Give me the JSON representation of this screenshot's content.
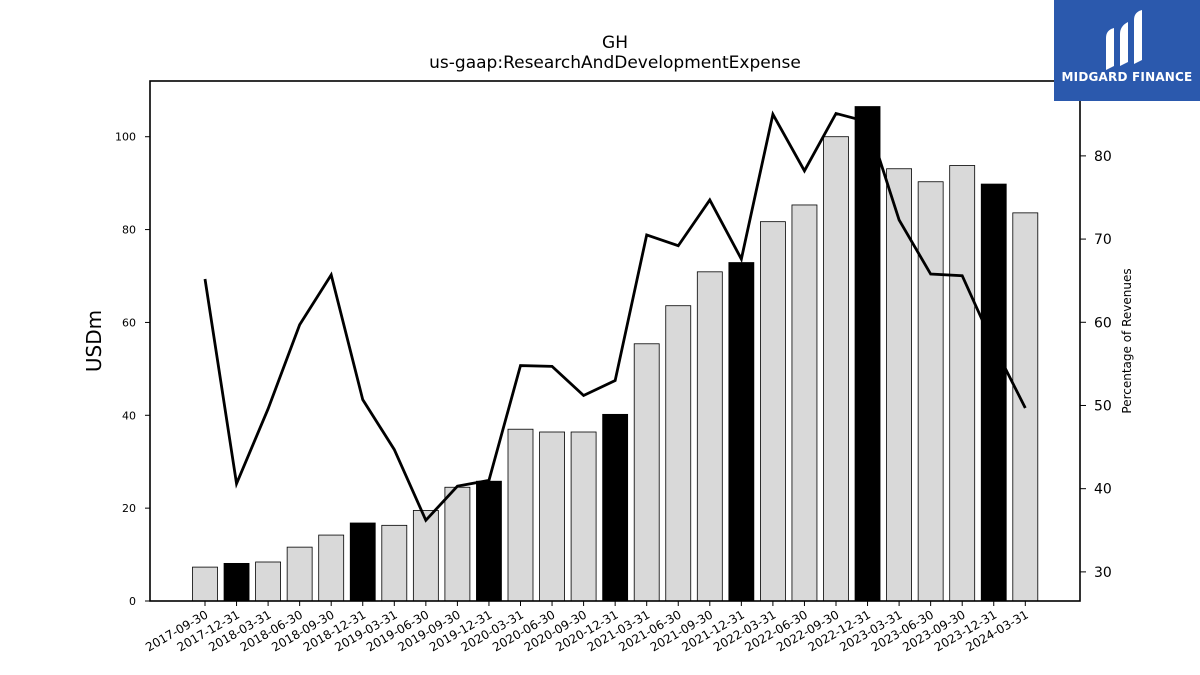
{
  "chart_data": {
    "type": "bar",
    "title": "GH",
    "subtitle": "us-gaap:ResearchAndDevelopmentExpense",
    "ylabel": "USDm",
    "y2label": "Percentage of Revenues",
    "ylim": [
      0,
      112
    ],
    "y2lim": [
      26.5,
      89
    ],
    "yticks": [
      0,
      20,
      40,
      60,
      80,
      100
    ],
    "y2ticks": [
      30,
      40,
      50,
      60,
      70,
      80
    ],
    "categories": [
      "2017-09-30",
      "2017-12-31",
      "2018-03-31",
      "2018-06-30",
      "2018-09-30",
      "2018-12-31",
      "2019-03-31",
      "2019-06-30",
      "2019-09-30",
      "2019-12-31",
      "2020-03-31",
      "2020-06-30",
      "2020-09-30",
      "2020-12-31",
      "2021-03-31",
      "2021-06-30",
      "2021-09-30",
      "2021-12-31",
      "2022-03-31",
      "2022-06-30",
      "2022-09-30",
      "2022-12-31",
      "2023-03-31",
      "2023-06-30",
      "2023-09-30",
      "2023-12-31",
      "2024-03-31"
    ],
    "series": [
      {
        "kind": "bar",
        "values": [
          7.3,
          8.1,
          8.4,
          11.6,
          14.2,
          16.8,
          16.3,
          19.5,
          24.5,
          25.8,
          37.0,
          36.4,
          36.4,
          40.2,
          55.4,
          63.6,
          70.9,
          72.9,
          81.7,
          85.3,
          100.0,
          106.5,
          93.1,
          90.3,
          93.8,
          89.8,
          83.6
        ],
        "highlight": [
          false,
          true,
          false,
          false,
          false,
          true,
          false,
          false,
          false,
          true,
          false,
          false,
          false,
          true,
          false,
          false,
          false,
          true,
          false,
          false,
          false,
          true,
          false,
          false,
          false,
          true,
          false
        ],
        "color": "#d9d9d9",
        "highlight_color": "#000000"
      },
      {
        "kind": "line",
        "axis": "right",
        "values": [
          65.2,
          40.6,
          49.6,
          59.7,
          65.7,
          50.7,
          44.7,
          36.2,
          40.3,
          41.0,
          54.8,
          54.7,
          51.2,
          53.0,
          70.5,
          69.2,
          74.7,
          67.6,
          85.0,
          78.2,
          85.1,
          84.1,
          72.3,
          65.8,
          65.6,
          57.2,
          49.7
        ],
        "color": "#000000"
      }
    ],
    "grid": false,
    "legend": "none"
  },
  "brand": {
    "name": "MIDGARD FINANCE",
    "color": "#2b59ad",
    "icon": "midgard-logo-icon"
  }
}
